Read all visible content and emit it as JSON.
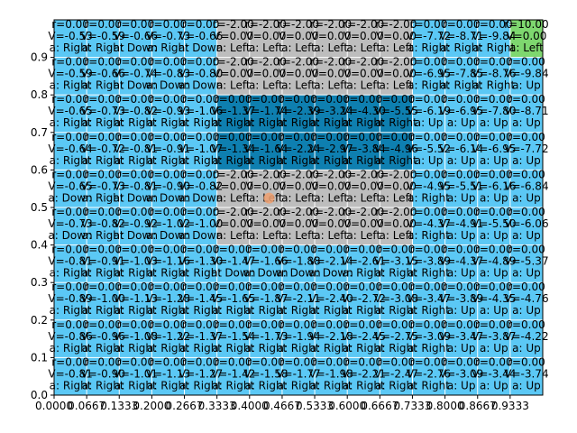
{
  "chart_data": {
    "type": "heatmap",
    "title": "",
    "xlabel": "",
    "ylabel": "",
    "xlim": [
      0,
      1
    ],
    "ylim": [
      0,
      1
    ],
    "grid": false,
    "x_ticks": [
      "0.0000",
      "0.0667",
      "0.1333",
      "0.2000",
      "0.2667",
      "0.3333",
      "0.4000",
      "0.4667",
      "0.5333",
      "0.6000",
      "0.6667",
      "0.7333",
      "0.8000",
      "0.8667",
      "0.9333"
    ],
    "y_ticks": [
      "0.0",
      "0.1",
      "0.2",
      "0.3",
      "0.4",
      "0.5",
      "0.6",
      "0.7",
      "0.8",
      "0.9"
    ],
    "colors": {
      "light_blue": "#5bc8f5",
      "dark_blue": "#0e7fb0",
      "gray": "#bdbdbd",
      "green": "#7ed76f",
      "agent": "#f0a070"
    },
    "agent_marker": {
      "x": 0.44,
      "y": 0.525
    },
    "rows": [
      {
        "r": [
          "0.00",
          "0.00",
          "0.00",
          "0.00",
          "0.00",
          "-2.00",
          "-2.00",
          "-2.00",
          "-2.00",
          "-2.00",
          "-2.00",
          "0.00",
          "0.00",
          "0.00",
          "10.00"
        ],
        "v": [
          "-0.53",
          "-0.59",
          "-0.66",
          "-0.73",
          "-0.66",
          "0.00",
          "0.00",
          "0.00",
          "0.00",
          "0.00",
          "0.00",
          "-7.72",
          "-8.71",
          "-9.84",
          "0.00"
        ],
        "a": [
          "Right",
          "Right",
          "Down",
          "Right",
          "Down",
          "Left",
          "Left",
          "Left",
          "Left",
          "Left",
          "Left",
          "Right",
          "Right",
          "Right",
          "Left"
        ],
        "c": [
          "lb",
          "lb",
          "lb",
          "lb",
          "lb",
          "gr",
          "gr",
          "gr",
          "gr",
          "gr",
          "gr",
          "lb",
          "lb",
          "lb",
          "gn"
        ]
      },
      {
        "r": [
          "0.00",
          "0.00",
          "0.00",
          "0.00",
          "0.00",
          "-2.00",
          "-2.00",
          "-2.00",
          "-2.00",
          "-2.00",
          "-2.00",
          "0.00",
          "0.00",
          "0.00",
          "0.00"
        ],
        "v": [
          "-0.59",
          "-0.66",
          "-0.74",
          "-0.83",
          "-0.80",
          "0.00",
          "0.00",
          "0.00",
          "0.00",
          "0.00",
          "0.00",
          "-6.95",
          "-7.85",
          "-8.76",
          "-9.84"
        ],
        "a": [
          "Right",
          "Right",
          "Down",
          "Down",
          "Down",
          "Left",
          "Left",
          "Left",
          "Left",
          "Left",
          "Left",
          "Right",
          "Right",
          "Right",
          "Up"
        ],
        "c": [
          "lb",
          "lb",
          "lb",
          "lb",
          "lb",
          "gr",
          "gr",
          "gr",
          "gr",
          "gr",
          "gr",
          "lb",
          "lb",
          "lb",
          "lb"
        ]
      },
      {
        "r": [
          "0.00",
          "0.00",
          "0.00",
          "0.00",
          "0.00",
          "0.00",
          "0.00",
          "0.00",
          "0.00",
          "0.00",
          "0.00",
          "0.00",
          "0.00",
          "0.00",
          "0.00"
        ],
        "v": [
          "-0.65",
          "-0.73",
          "-0.82",
          "-0.93",
          "-1.06",
          "-1.37",
          "-1.74",
          "-2.39",
          "-3.24",
          "-4.30",
          "-5.55",
          "-6.19",
          "-6.95",
          "-7.80",
          "-8.71"
        ],
        "a": [
          "Right",
          "Right",
          "Right",
          "Right",
          "Right",
          "Right",
          "Right",
          "Right",
          "Right",
          "Right",
          "Right",
          "Up",
          "Up",
          "Up",
          "Up"
        ],
        "c": [
          "lb",
          "lb",
          "lb",
          "lb",
          "lb",
          "db",
          "db",
          "db",
          "db",
          "db",
          "db",
          "lb",
          "lb",
          "lb",
          "lb"
        ]
      },
      {
        "r": [
          "0.00",
          "0.00",
          "0.00",
          "0.00",
          "0.00",
          "0.00",
          "0.00",
          "0.00",
          "0.00",
          "0.00",
          "0.00",
          "0.00",
          "0.00",
          "0.00",
          "0.00"
        ],
        "v": [
          "-0.64",
          "-0.72",
          "-0.81",
          "-0.91",
          "-1.07",
          "-1.34",
          "-1.64",
          "-2.24",
          "-2.97",
          "-3.84",
          "-4.96",
          "-5.52",
          "-6.14",
          "-6.95",
          "-7.72"
        ],
        "a": [
          "Right",
          "Right",
          "Right",
          "Right",
          "Right",
          "Right",
          "Right",
          "Right",
          "Right",
          "Right",
          "Right",
          "Up",
          "Up",
          "Up",
          "Up"
        ],
        "c": [
          "lb",
          "lb",
          "lb",
          "lb",
          "lb",
          "db",
          "db",
          "db",
          "db",
          "db",
          "db",
          "lb",
          "lb",
          "lb",
          "lb"
        ]
      },
      {
        "r": [
          "0.00",
          "0.00",
          "0.00",
          "0.00",
          "0.00",
          "-2.00",
          "-2.00",
          "-2.00",
          "-2.00",
          "-2.00",
          "-2.00",
          "0.00",
          "0.00",
          "0.00",
          "0.00"
        ],
        "v": [
          "-0.65",
          "-0.73",
          "-0.81",
          "-0.90",
          "-0.82",
          "0.00",
          "0.00",
          "0.00",
          "0.00",
          "0.00",
          "0.00",
          "-4.95",
          "-5.51",
          "-6.16",
          "-6.84"
        ],
        "a": [
          "Down",
          "Right",
          "Down",
          "Down",
          "Down",
          "Left",
          "Left",
          "Left",
          "Left",
          "Left",
          "Left",
          "Right",
          "Up",
          "Up",
          "Up"
        ],
        "c": [
          "lb",
          "lb",
          "lb",
          "lb",
          "lb",
          "gr",
          "gr",
          "gr",
          "gr",
          "gr",
          "gr",
          "lb",
          "lb",
          "lb",
          "lb"
        ]
      },
      {
        "r": [
          "0.00",
          "0.00",
          "0.00",
          "0.00",
          "0.00",
          "-2.00",
          "-2.00",
          "-2.00",
          "-2.00",
          "-2.00",
          "-2.00",
          "0.00",
          "0.00",
          "0.00",
          "0.00"
        ],
        "v": [
          "-0.73",
          "-0.82",
          "-0.92",
          "-1.02",
          "-1.00",
          "0.00",
          "0.00",
          "0.00",
          "0.00",
          "0.00",
          "0.00",
          "-4.37",
          "-4.91",
          "-5.50",
          "-6.06"
        ],
        "a": [
          "Down",
          "Right",
          "Down",
          "Down",
          "Down",
          "Left",
          "Left",
          "Left",
          "Left",
          "Left",
          "Left",
          "Right",
          "Up",
          "Up",
          "Up"
        ],
        "c": [
          "lb",
          "lb",
          "lb",
          "lb",
          "lb",
          "gr",
          "gr",
          "gr",
          "gr",
          "gr",
          "gr",
          "lb",
          "lb",
          "lb",
          "lb"
        ]
      },
      {
        "r": [
          "0.00",
          "0.00",
          "0.00",
          "0.00",
          "0.00",
          "0.00",
          "0.00",
          "0.00",
          "0.00",
          "0.00",
          "0.00",
          "0.00",
          "0.00",
          "0.00",
          "0.00"
        ],
        "v": [
          "-0.81",
          "-0.91",
          "-1.03",
          "-1.16",
          "-1.30",
          "-1.47",
          "-1.66",
          "-1.88",
          "-2.14",
          "-2.61",
          "-3.15",
          "-3.89",
          "-4.37",
          "-4.89",
          "-5.37"
        ],
        "a": [
          "Right",
          "Right",
          "Right",
          "Right",
          "Right",
          "Down",
          "Down",
          "Down",
          "Down",
          "Right",
          "Right",
          "Right",
          "Up",
          "Up",
          "Up"
        ],
        "c": [
          "lb",
          "lb",
          "lb",
          "lb",
          "lb",
          "lb",
          "lb",
          "lb",
          "lb",
          "lb",
          "lb",
          "lb",
          "lb",
          "lb",
          "lb"
        ]
      },
      {
        "r": [
          "0.00",
          "0.00",
          "0.00",
          "0.00",
          "0.00",
          "0.00",
          "0.00",
          "0.00",
          "0.00",
          "0.00",
          "0.00",
          "0.00",
          "0.00",
          "0.00",
          "0.00"
        ],
        "v": [
          "-0.89",
          "-1.00",
          "-1.13",
          "-1.28",
          "-1.45",
          "-1.65",
          "-1.87",
          "-2.11",
          "-2.40",
          "-2.72",
          "-3.08",
          "-3.47",
          "-3.89",
          "-4.35",
          "-4.76"
        ],
        "a": [
          "Right",
          "Right",
          "Right",
          "Right",
          "Right",
          "Right",
          "Right",
          "Right",
          "Right",
          "Right",
          "Right",
          "Right",
          "Up",
          "Up",
          "Up"
        ],
        "c": [
          "lb",
          "lb",
          "lb",
          "lb",
          "lb",
          "lb",
          "lb",
          "lb",
          "lb",
          "lb",
          "lb",
          "lb",
          "lb",
          "lb",
          "lb"
        ]
      },
      {
        "r": [
          "0.00",
          "0.00",
          "0.00",
          "0.00",
          "0.00",
          "0.00",
          "0.00",
          "0.00",
          "0.00",
          "0.00",
          "0.00",
          "0.00",
          "0.00",
          "0.00",
          "0.00"
        ],
        "v": [
          "-0.86",
          "-0.96",
          "-1.08",
          "-1.22",
          "-1.37",
          "-1.54",
          "-1.73",
          "-1.94",
          "-2.18",
          "-2.45",
          "-2.75",
          "-3.09",
          "-3.47",
          "-3.87",
          "-4.22"
        ],
        "a": [
          "Right",
          "Right",
          "Right",
          "Right",
          "Right",
          "Right",
          "Right",
          "Right",
          "Right",
          "Right",
          "Right",
          "Right",
          "Up",
          "Up",
          "Up"
        ],
        "c": [
          "lb",
          "lb",
          "lb",
          "lb",
          "lb",
          "lb",
          "lb",
          "lb",
          "lb",
          "lb",
          "lb",
          "lb",
          "lb",
          "lb",
          "lb"
        ]
      },
      {
        "r": [
          "0.00",
          "0.00",
          "0.00",
          "0.00",
          "0.00",
          "0.00",
          "0.00",
          "0.00",
          "0.00",
          "0.00",
          "0.00",
          "0.00",
          "0.00",
          "0.00",
          "0.00"
        ],
        "v": [
          "-0.81",
          "-0.90",
          "-1.01",
          "-1.13",
          "-1.27",
          "-1.42",
          "-1.58",
          "-1.77",
          "-1.98",
          "-2.21",
          "-2.47",
          "-2.76",
          "-3.09",
          "-3.44",
          "-3.74"
        ],
        "a": [
          "Right",
          "Right",
          "Right",
          "Right",
          "Right",
          "Right",
          "Right",
          "Right",
          "Right",
          "Right",
          "Right",
          "Right",
          "Up",
          "Up",
          "Up"
        ],
        "c": [
          "lb",
          "lb",
          "lb",
          "lb",
          "lb",
          "lb",
          "lb",
          "lb",
          "lb",
          "lb",
          "lb",
          "lb",
          "lb",
          "lb",
          "lb"
        ]
      }
    ]
  }
}
